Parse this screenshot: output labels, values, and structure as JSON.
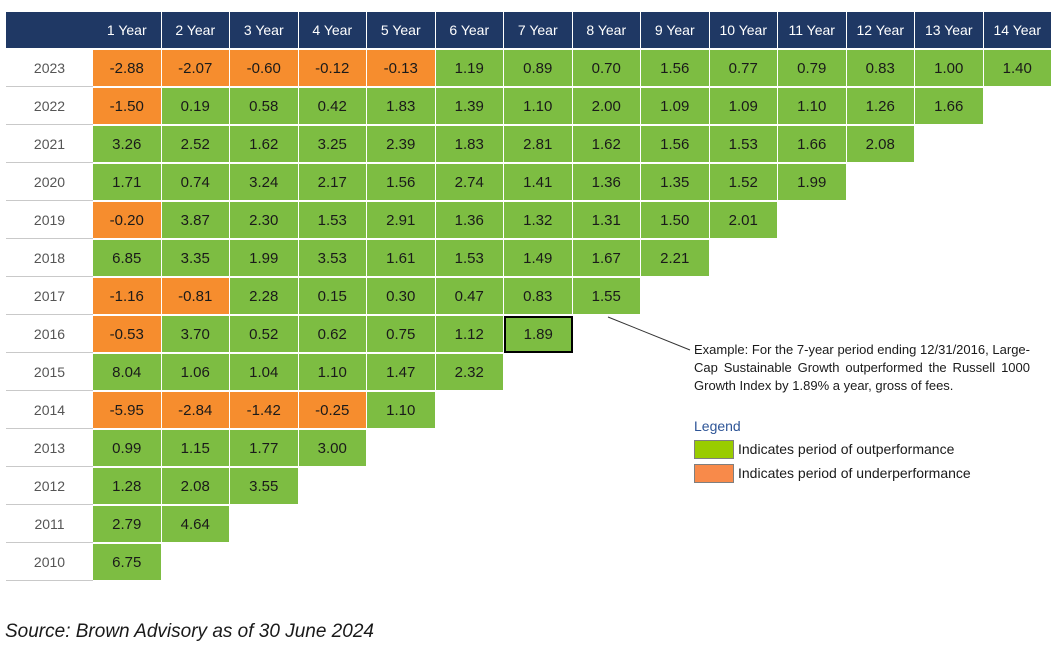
{
  "chart_data": {
    "type": "table",
    "columns": [
      "1 Year",
      "2 Year",
      "3 Year",
      "4 Year",
      "5 Year",
      "6 Year",
      "7 Year",
      "8 Year",
      "9 Year",
      "10 Year",
      "11 Year",
      "12 Year",
      "13 Year",
      "14 Year"
    ],
    "rows": [
      {
        "year": "2023",
        "values": [
          "-2.88",
          "-2.07",
          "-0.60",
          "-0.12",
          "-0.13",
          "1.19",
          "0.89",
          "0.70",
          "1.56",
          "0.77",
          "0.79",
          "0.83",
          "1.00",
          "1.40"
        ]
      },
      {
        "year": "2022",
        "values": [
          "-1.50",
          "0.19",
          "0.58",
          "0.42",
          "1.83",
          "1.39",
          "1.10",
          "2.00",
          "1.09",
          "1.09",
          "1.10",
          "1.26",
          "1.66"
        ]
      },
      {
        "year": "2021",
        "values": [
          "3.26",
          "2.52",
          "1.62",
          "3.25",
          "2.39",
          "1.83",
          "2.81",
          "1.62",
          "1.56",
          "1.53",
          "1.66",
          "2.08"
        ]
      },
      {
        "year": "2020",
        "values": [
          "1.71",
          "0.74",
          "3.24",
          "2.17",
          "1.56",
          "2.74",
          "1.41",
          "1.36",
          "1.35",
          "1.52",
          "1.99"
        ]
      },
      {
        "year": "2019",
        "values": [
          "-0.20",
          "3.87",
          "2.30",
          "1.53",
          "2.91",
          "1.36",
          "1.32",
          "1.31",
          "1.50",
          "2.01"
        ]
      },
      {
        "year": "2018",
        "values": [
          "6.85",
          "3.35",
          "1.99",
          "3.53",
          "1.61",
          "1.53",
          "1.49",
          "1.67",
          "2.21"
        ]
      },
      {
        "year": "2017",
        "values": [
          "-1.16",
          "-0.81",
          "2.28",
          "0.15",
          "0.30",
          "0.47",
          "0.83",
          "1.55"
        ]
      },
      {
        "year": "2016",
        "values": [
          "-0.53",
          "3.70",
          "0.52",
          "0.62",
          "0.75",
          "1.12",
          "1.89"
        ]
      },
      {
        "year": "2015",
        "values": [
          "8.04",
          "1.06",
          "1.04",
          "1.10",
          "1.47",
          "2.32"
        ]
      },
      {
        "year": "2014",
        "values": [
          "-5.95",
          "-2.84",
          "-1.42",
          "-0.25",
          "1.10"
        ]
      },
      {
        "year": "2013",
        "values": [
          "0.99",
          "1.15",
          "1.77",
          "3.00"
        ]
      },
      {
        "year": "2012",
        "values": [
          "1.28",
          "2.08",
          "3.55"
        ]
      },
      {
        "year": "2011",
        "values": [
          "2.79",
          "4.64"
        ]
      },
      {
        "year": "2010",
        "values": [
          "6.75"
        ]
      }
    ],
    "highlight": {
      "year": "2016",
      "column": "7 Year"
    },
    "colors": {
      "header": "#1f3864",
      "outperformance": "#7dbd42",
      "underperformance": "#f68d2e"
    }
  },
  "note": "Example: For the 7-year period ending 12/31/2016, Large-Cap Sustainable Growth outperformed the Russell 1000 Growth Index by 1.89% a year, gross of fees.",
  "legend": {
    "title": "Legend",
    "items": [
      {
        "label": "Indicates period of outperformance",
        "color": "#99cc00"
      },
      {
        "label": "Indicates period of underperformance",
        "color": "#f88a4a"
      }
    ]
  },
  "source": "Source: Brown Advisory as of 30 June 2024"
}
